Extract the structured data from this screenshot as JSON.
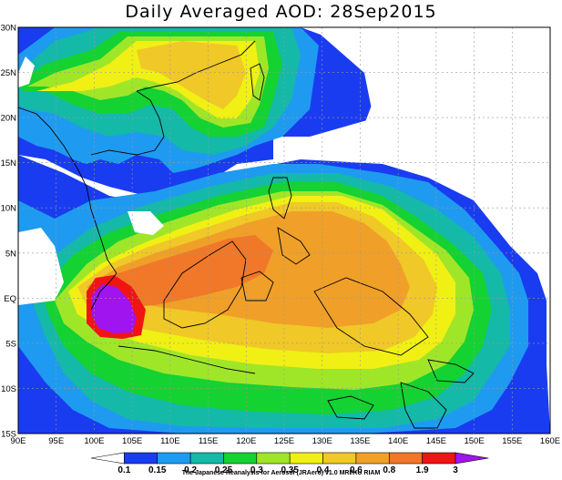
{
  "title": "Daily Averaged AOD: 28Sep2015",
  "map": {
    "lon_range": [
      90,
      160
    ],
    "lat_range": [
      -15,
      30
    ],
    "lon_ticks": [
      "90E",
      "95E",
      "100E",
      "105E",
      "110E",
      "115E",
      "120E",
      "125E",
      "130E",
      "135E",
      "140E",
      "145E",
      "150E",
      "155E",
      "160E"
    ],
    "lat_ticks": [
      "30N",
      "25N",
      "20N",
      "15N",
      "10N",
      "5N",
      "EQ",
      "5S",
      "10S",
      "15S"
    ]
  },
  "colorbar": {
    "labels": [
      "0.1",
      "0.15",
      "0.2",
      "0.25",
      "0.3",
      "0.35",
      "0.4",
      "0.6",
      "0.8",
      "1.9",
      "3"
    ],
    "colors": [
      "#ffffff",
      "#1a3cf0",
      "#1e9bf0",
      "#14b9a8",
      "#14d232",
      "#a0e628",
      "#f0f014",
      "#f0c828",
      "#f0a028",
      "#f07828",
      "#f01414",
      "#a014f0"
    ]
  },
  "aod_levels": {
    "none": "#ffffff",
    "l1": "#1a3cf0",
    "l2": "#1e9bf0",
    "l3": "#14b9a8",
    "l4": "#14d232",
    "l5": "#a0e628",
    "l6": "#f0f014",
    "l7": "#f0c828",
    "l8": "#f0a028",
    "l9": "#f07828",
    "l10": "#f01414",
    "l11": "#a014f0"
  },
  "credit": "The Japanese Reanalysis for Aerosol (JRAero) v1.0 MRI/KU RIAM"
}
